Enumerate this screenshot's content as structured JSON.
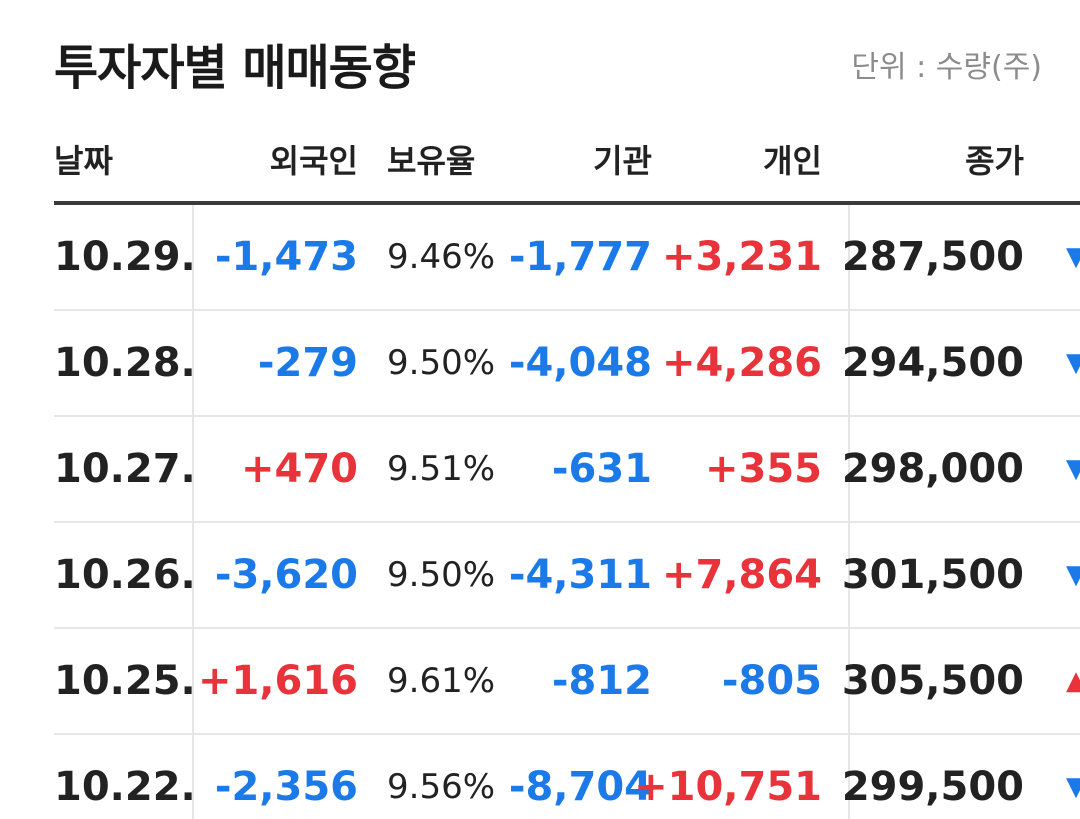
{
  "header": {
    "title": "투자자별 매매동향",
    "unit": "단위 : 수량(주)"
  },
  "columns": {
    "date": "날짜",
    "foreign": "외국인",
    "ratio": "보유율",
    "institution": "기관",
    "individual": "개인",
    "close": "종가"
  },
  "colors": {
    "negative": "#1b7ae8",
    "positive": "#e8333a"
  },
  "rows": [
    {
      "date": "10.29.",
      "foreign": "-1,473",
      "ratio": "9.46%",
      "institution": "-1,777",
      "individual": "+3,231",
      "close": "287,500",
      "arrow": "▼"
    },
    {
      "date": "10.28.",
      "foreign": "-279",
      "ratio": "9.50%",
      "institution": "-4,048",
      "individual": "+4,286",
      "close": "294,500",
      "arrow": "▼"
    },
    {
      "date": "10.27.",
      "foreign": "+470",
      "ratio": "9.51%",
      "institution": "-631",
      "individual": "+355",
      "close": "298,000",
      "arrow": "▼"
    },
    {
      "date": "10.26.",
      "foreign": "-3,620",
      "ratio": "9.50%",
      "institution": "-4,311",
      "individual": "+7,864",
      "close": "301,500",
      "arrow": "▼"
    },
    {
      "date": "10.25.",
      "foreign": "+1,616",
      "ratio": "9.61%",
      "institution": "-812",
      "individual": "-805",
      "close": "305,500",
      "arrow": "▲"
    },
    {
      "date": "10.22.",
      "foreign": "-2,356",
      "ratio": "9.56%",
      "institution": "-8,704",
      "individual": "+10,751",
      "close": "299,500",
      "arrow": "▼"
    }
  ]
}
